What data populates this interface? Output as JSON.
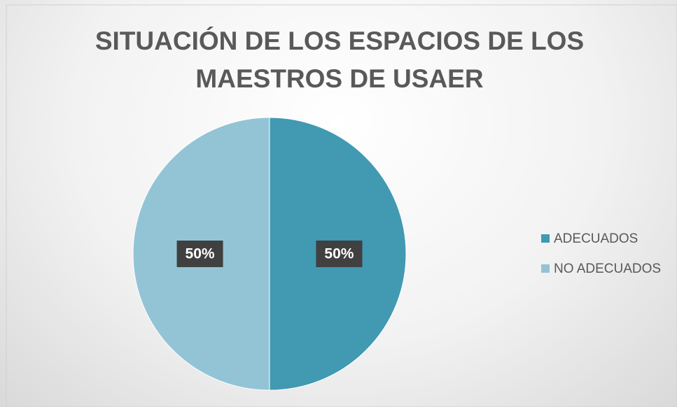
{
  "chart_data": {
    "type": "pie",
    "title": "SITUACIÓN DE LOS ESPACIOS DE LOS MAESTROS DE USAER",
    "categories": [
      "ADECUADOS",
      "NO ADECUADOS"
    ],
    "values": [
      50,
      50
    ],
    "value_labels": [
      "50%",
      "50%"
    ],
    "colors": [
      "#4299b2",
      "#93c4d6"
    ],
    "legend": "right"
  }
}
